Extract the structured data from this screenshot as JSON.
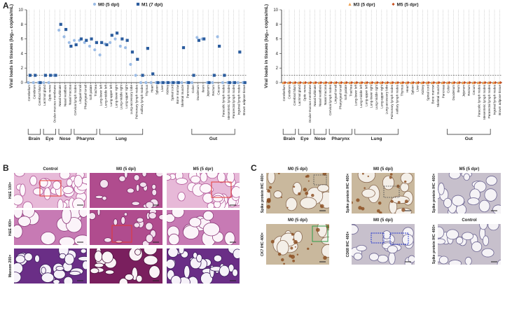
{
  "panel_a": {
    "label": "A"
  },
  "chart_data": [
    {
      "type": "scatter",
      "y_label": "Viral loads in tissues (log₁₀ copies/mL)",
      "categories": [
        "Cerebellum",
        "Cerebrum",
        "Cerebral hilum",
        "Lacrimal gland",
        "Optic nerve",
        "Ocular-mucous membrane",
        "Nasal turbinate",
        "Nasal vestibule",
        "Nasal mucosa",
        "Cervical lymph nodes",
        "Lingual tonsil",
        "Pharyngeal tonsil",
        "Soft palate",
        "Trachea",
        "Lung-lower left",
        "Lung-middle left",
        "Lung-upper left",
        "Lung-lower right",
        "Lung-middle right",
        "Lung-upper right",
        "Lung-accessory lobe",
        "Pulmonary lymph nodes",
        "Axillary lymph nodes",
        "Thymus",
        "Heart",
        "Spleen",
        "Liver",
        "Kidney",
        "Spinal cord",
        "Bone marrow",
        "Skeletal muscle",
        "Pancreas",
        "Colon",
        "Duodenum",
        "Ileum",
        "Jejunum",
        "Rectum",
        "Cecum",
        "Paracolic lymph nodes",
        "Mesenteric lymph nodes",
        "Pararectal lymph nodes",
        "Inguinal lymph nodes",
        "Brown adipose tissue"
      ],
      "group_labels": [
        "Brain",
        "Eye",
        "Nose",
        "Pharynx",
        "Lung",
        "Gut"
      ],
      "series": [
        {
          "name": "M0 (5 dpi)",
          "color": "#9dbde6",
          "marker": "circle",
          "values": [
            0,
            0,
            0,
            0,
            0,
            1,
            7.2,
            6.3,
            5.5,
            5.8,
            5.8,
            5.5,
            5,
            4.5,
            3.8,
            5.3,
            5.5,
            6,
            5,
            4.8,
            2.5,
            1,
            0,
            0,
            0,
            0,
            0,
            0,
            0,
            0,
            0,
            0,
            0,
            6.2,
            6,
            0,
            0,
            6.3,
            0,
            0,
            0,
            0,
            0
          ]
        },
        {
          "name": "M1 (7 dpi)",
          "color": "#2c5d9e",
          "marker": "square",
          "values": [
            1,
            1,
            0,
            1,
            1,
            1,
            8,
            7.3,
            5,
            5.2,
            6,
            5.8,
            6,
            5.5,
            5.5,
            5.2,
            6.5,
            6.8,
            6,
            5.8,
            4.2,
            3.2,
            1,
            4.7,
            1.2,
            0,
            0,
            0,
            0,
            0,
            4.8,
            0,
            1,
            5.8,
            6,
            0,
            1,
            5,
            1,
            0,
            0,
            4.2,
            0
          ]
        }
      ],
      "ylim": [
        0,
        10
      ],
      "yticks": [
        0,
        2,
        4,
        6,
        8,
        10
      ],
      "reference_line": 1
    },
    {
      "type": "scatter",
      "y_label": "Viral loads in tissues (log₁₀ copies/mL)",
      "categories": [
        "Cerebellum",
        "Cerebrum",
        "Cerebral hilum",
        "Lacrimal gland",
        "Optic nerve",
        "Ocular-mucous membrane",
        "Nasal turbinate",
        "Nasal vestibule",
        "Nasal mucosa",
        "Cervical lymph nodes",
        "Lingual tonsil",
        "Pharyngeal tonsil",
        "Soft palate",
        "Trachea",
        "Lung-lower left",
        "Lung-middle left",
        "Lung-upper left",
        "Lung-lower right",
        "Lung-middle right",
        "Lung-upper right",
        "Lung-accessory lobe",
        "Pulmonary lymph nodes",
        "Axillary lymph nodes",
        "Thymus",
        "Heart",
        "Spleen",
        "Liver",
        "Kidney",
        "Spinal cord",
        "Bone marrow",
        "Skeletal muscle",
        "Pancreas",
        "Colon",
        "Duodenum",
        "Ileum",
        "Jejunum",
        "Rectum",
        "Cecum",
        "Paracolic lymph nodes",
        "Mesenteric lymph nodes",
        "Pararectal lymph nodes",
        "Inguinal lymph nodes",
        "Brown adipose tissue"
      ],
      "group_labels": [
        "Brain",
        "Eye",
        "Nose",
        "Pharynx",
        "Lung",
        "Gut"
      ],
      "series": [
        {
          "name": "M3 (5 dpr)",
          "color": "#f0a050",
          "marker": "triangle",
          "values": [
            0,
            0,
            0,
            0,
            0,
            0,
            0,
            0,
            0,
            0,
            0,
            0,
            0,
            0,
            0,
            0,
            0,
            0,
            0,
            0,
            0,
            0,
            0,
            0,
            0,
            0,
            0,
            0,
            0,
            0,
            0,
            0,
            0,
            0,
            0,
            0,
            0,
            0,
            0,
            0,
            0,
            0,
            0
          ]
        },
        {
          "name": "M5 (5 dpr)",
          "color": "#c8501e",
          "marker": "diamond",
          "values": [
            0,
            0,
            0,
            0,
            0,
            0,
            0,
            0,
            0,
            0,
            0,
            0,
            0,
            0,
            0,
            0,
            0,
            0,
            0,
            0,
            0,
            0,
            0,
            0,
            0,
            0,
            0,
            0,
            0,
            0,
            0,
            0,
            0,
            0,
            0,
            0,
            0,
            0,
            0,
            0,
            0,
            0,
            0
          ]
        }
      ],
      "ylim": [
        0,
        10
      ],
      "yticks": [
        0,
        2,
        4,
        6,
        8,
        10
      ],
      "reference_line": 1
    }
  ],
  "panel_b": {
    "label": "B",
    "columns": [
      "Control",
      "M0 (5 dpi)",
      "M5 (5 dpr)"
    ],
    "rows": [
      "H&E 100×",
      "H&E 400×",
      "Masson 200×"
    ]
  },
  "panel_c": {
    "label": "C",
    "tiles": [
      {
        "title": "M0 (5 dpi)",
        "stain": "Spike protein IHC 400×"
      },
      {
        "title": "M0 (5 dpi)",
        "stain": "Spike protein IHC 400×"
      },
      {
        "title": "M5 (5 dpr)",
        "stain": "Spike protein IHC 400×"
      },
      {
        "title": "M0 (5 dpi)",
        "stain": "CK7 IHC 400×"
      },
      {
        "title": "M0 (5 dpi)",
        "stain": "CD68 IHC 400×"
      },
      {
        "title": "Control",
        "stain": "Spike protein IHC 400×"
      }
    ]
  }
}
